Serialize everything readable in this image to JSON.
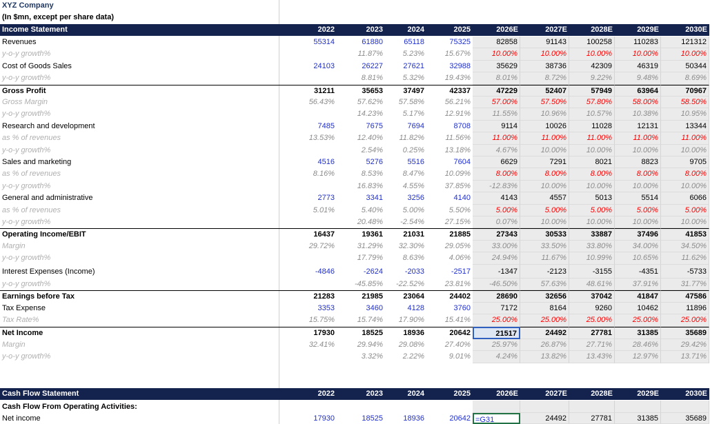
{
  "header": {
    "title": "XYZ Company",
    "subtitle": "(In $mn, except per share data)"
  },
  "income_statement": {
    "title": "Income Statement",
    "years": [
      "2022",
      "2023",
      "2024",
      "2025",
      "2026E",
      "2027E",
      "2028E",
      "2029E",
      "2030E"
    ],
    "rows": [
      {
        "label": "Revenues",
        "cells": [
          55314,
          61880,
          65118,
          75325,
          82858,
          91143,
          100258,
          110283,
          121312
        ]
      },
      {
        "label": "y-o-y growth%",
        "cells": [
          null,
          "11.87%",
          "5.23%",
          "15.67%",
          "10.00%",
          "10.00%",
          "10.00%",
          "10.00%",
          "10.00%"
        ]
      },
      {
        "label": "Cost of Goods Sales",
        "cells": [
          24103,
          26227,
          27621,
          32988,
          35629,
          38736,
          42309,
          46319,
          50344
        ]
      },
      {
        "label": "y-o-y growth%",
        "cells": [
          null,
          "8.81%",
          "5.32%",
          "19.43%",
          "8.01%",
          "8.72%",
          "9.22%",
          "9.48%",
          "8.69%"
        ]
      },
      {
        "label": "Gross Profit",
        "cells": [
          31211,
          35653,
          37497,
          42337,
          47229,
          52407,
          57949,
          63964,
          70967
        ]
      },
      {
        "label": "Gross Margin",
        "cells": [
          "56.43%",
          "57.62%",
          "57.58%",
          "56.21%",
          "57.00%",
          "57.50%",
          "57.80%",
          "58.00%",
          "58.50%"
        ]
      },
      {
        "label": "y-o-y growth%",
        "cells": [
          null,
          "14.23%",
          "5.17%",
          "12.91%",
          "11.55%",
          "10.96%",
          "10.57%",
          "10.38%",
          "10.95%"
        ]
      },
      {
        "label": "Research and development",
        "cells": [
          7485,
          7675,
          7694,
          8708,
          9114,
          10026,
          11028,
          12131,
          13344
        ]
      },
      {
        "label": "as % of revenues",
        "cells": [
          "13.53%",
          "12.40%",
          "11.82%",
          "11.56%",
          "11.00%",
          "11.00%",
          "11.00%",
          "11.00%",
          "11.00%"
        ]
      },
      {
        "label": "y-o-y growth%",
        "cells": [
          null,
          "2.54%",
          "0.25%",
          "13.18%",
          "4.67%",
          "10.00%",
          "10.00%",
          "10.00%",
          "10.00%"
        ]
      },
      {
        "label": "Sales and marketing",
        "cells": [
          4516,
          5276,
          5516,
          7604,
          6629,
          7291,
          8021,
          8823,
          9705
        ]
      },
      {
        "label": "as % of revenues",
        "cells": [
          "8.16%",
          "8.53%",
          "8.47%",
          "10.09%",
          "8.00%",
          "8.00%",
          "8.00%",
          "8.00%",
          "8.00%"
        ]
      },
      {
        "label": "y-o-y growth%",
        "cells": [
          null,
          "16.83%",
          "4.55%",
          "37.85%",
          "-12.83%",
          "10.00%",
          "10.00%",
          "10.00%",
          "10.00%"
        ]
      },
      {
        "label": "General and administrative",
        "cells": [
          2773,
          3341,
          3256,
          4140,
          4143,
          4557,
          5013,
          5514,
          6066
        ]
      },
      {
        "label": "as % of revenues",
        "cells": [
          "5.01%",
          "5.40%",
          "5.00%",
          "5.50%",
          "5.00%",
          "5.00%",
          "5.00%",
          "5.00%",
          "5.00%"
        ]
      },
      {
        "label": "y-o-y growth%",
        "cells": [
          null,
          "20.48%",
          "-2.54%",
          "27.15%",
          "0.07%",
          "10.00%",
          "10.00%",
          "10.00%",
          "10.00%"
        ]
      },
      {
        "label": "Operating Income/EBIT",
        "cells": [
          16437,
          19361,
          21031,
          21885,
          27343,
          30533,
          33887,
          37496,
          41853
        ]
      },
      {
        "label": "Margin",
        "cells": [
          "29.72%",
          "31.29%",
          "32.30%",
          "29.05%",
          "33.00%",
          "33.50%",
          "33.80%",
          "34.00%",
          "34.50%"
        ]
      },
      {
        "label": "y-o-y growth%",
        "cells": [
          null,
          "17.79%",
          "8.63%",
          "4.06%",
          "24.94%",
          "11.67%",
          "10.99%",
          "10.65%",
          "11.62%"
        ]
      },
      {
        "label": "Interest Expenses (Income)",
        "cells": [
          -4846,
          -2624,
          -2033,
          -2517,
          -1347,
          -2123,
          -3155,
          -4351,
          -5733
        ]
      },
      {
        "label": "y-o-y growth%",
        "cells": [
          null,
          "-45.85%",
          "-22.52%",
          "23.81%",
          "-46.50%",
          "57.63%",
          "48.61%",
          "37.91%",
          "31.77%"
        ]
      },
      {
        "label": "Earnings before Tax",
        "cells": [
          21283,
          21985,
          23064,
          24402,
          28690,
          32656,
          37042,
          41847,
          47586
        ]
      },
      {
        "label": "Tax Expense",
        "cells": [
          3353,
          3460,
          4128,
          3760,
          7172,
          8164,
          9260,
          10462,
          11896
        ]
      },
      {
        "label": "Tax Rate%",
        "cells": [
          "15.75%",
          "15.74%",
          "17.90%",
          "15.41%",
          "25.00%",
          "25.00%",
          "25.00%",
          "25.00%",
          "25.00%"
        ]
      },
      {
        "label": "Net Income",
        "cells": [
          17930,
          18525,
          18936,
          20642,
          21517,
          24492,
          27781,
          31385,
          35689
        ]
      },
      {
        "label": "Margin",
        "cells": [
          "32.41%",
          "29.94%",
          "29.08%",
          "27.40%",
          "25.97%",
          "26.87%",
          "27.71%",
          "28.46%",
          "29.42%"
        ]
      },
      {
        "label": "y-o-y growth%",
        "cells": [
          null,
          "3.32%",
          "2.22%",
          "9.01%",
          "4.24%",
          "13.82%",
          "13.43%",
          "12.97%",
          "13.71%"
        ]
      }
    ]
  },
  "cash_flow": {
    "title": "Cash Flow Statement",
    "years": [
      "2022",
      "2023",
      "2024",
      "2025",
      "2026E",
      "2027E",
      "2028E",
      "2029E",
      "2030E"
    ],
    "section": "Cash Flow From Operating Activities:",
    "rows": [
      {
        "label": "Net income",
        "cells": [
          17930,
          18525,
          18936,
          20642,
          "=G31",
          24492,
          27781,
          31385,
          35689
        ]
      }
    ]
  }
}
